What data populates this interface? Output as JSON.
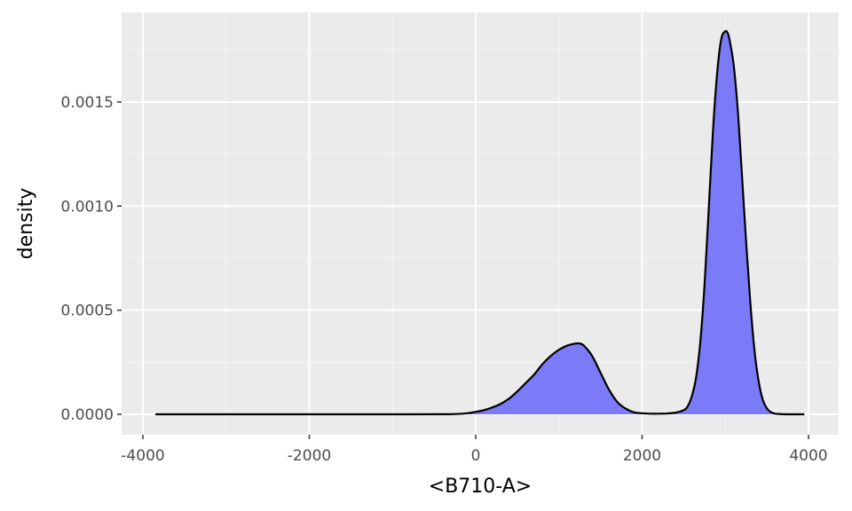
{
  "chart_data": {
    "type": "area",
    "title": "",
    "xlabel": "<B710-A>",
    "ylabel": "density",
    "xlim": [
      -4000,
      4000
    ],
    "ylim": [
      0,
      0.00185
    ],
    "x_ticks": [
      -4000,
      -2000,
      0,
      2000,
      4000
    ],
    "x_tick_labels": [
      "-4000",
      "-2000",
      "0",
      "2000",
      "4000"
    ],
    "y_ticks": [
      0,
      0.0005,
      0.001,
      0.0015
    ],
    "y_tick_labels": [
      "0.0000",
      "0.0005",
      "0.0010",
      "0.0015"
    ],
    "grid": true,
    "legend": "none",
    "series": [
      {
        "x": [
          -3850,
          -2000,
          -800,
          -300,
          -100,
          0,
          100,
          200,
          300,
          400,
          500,
          600,
          700,
          800,
          900,
          1000,
          1100,
          1200,
          1250,
          1300,
          1400,
          1500,
          1600,
          1700,
          1800,
          1900,
          2000,
          2100,
          2200,
          2300,
          2400,
          2500,
          2550,
          2600,
          2650,
          2700,
          2750,
          2800,
          2850,
          2900,
          2950,
          3000,
          3030,
          3050,
          3100,
          3150,
          3200,
          3250,
          3300,
          3350,
          3400,
          3450,
          3500,
          3550,
          3600,
          3700,
          3800,
          3950
        ],
        "y": [
          0,
          0,
          0,
          5e-07,
          5e-06,
          1.2e-05,
          2e-05,
          3.3e-05,
          5e-05,
          7.5e-05,
          0.00011,
          0.00015,
          0.00019,
          0.00024,
          0.00028,
          0.00031,
          0.00033,
          0.00034,
          0.00034,
          0.00033,
          0.00028,
          0.0002,
          0.00012,
          6e-05,
          2.8e-05,
          1e-05,
          5e-06,
          3e-06,
          3e-06,
          4e-06,
          8e-06,
          2e-05,
          4e-05,
          9e-05,
          0.00018,
          0.00035,
          0.00062,
          0.00098,
          0.00135,
          0.00163,
          0.0018,
          0.00184,
          0.00183,
          0.0018,
          0.00168,
          0.00146,
          0.00115,
          0.00083,
          0.00054,
          0.00031,
          0.00016,
          7e-05,
          2.8e-05,
          1e-05,
          3e-06,
          5e-07,
          0,
          0
        ]
      }
    ]
  },
  "colors": {
    "panel_background": "#ebebeb",
    "grid_major": "#ffffff",
    "grid_minor": "#f5f5f5",
    "area_fill": "#7b7bf7",
    "line": "#000000",
    "tick_text": "#4d4d4d",
    "tick_mark": "#333333"
  }
}
